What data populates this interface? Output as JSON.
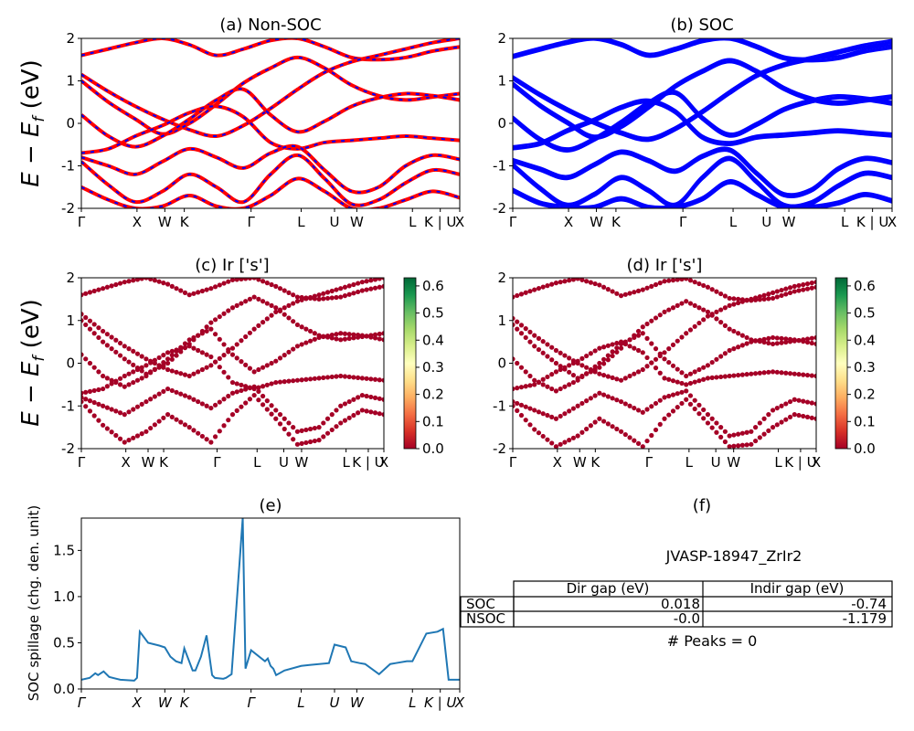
{
  "figure": {
    "ylabel_main": "E − E",
    "ylabel_sub": "f",
    "ylabel_unit": " (eV)",
    "spillage_ylabel": "SOC spillage (chg. den. unit)"
  },
  "kpath": {
    "labels": [
      "Γ",
      "X",
      "W",
      "K",
      "Γ",
      "L",
      "U",
      "W",
      "L",
      "K | U",
      "X"
    ],
    "positions": [
      0,
      1,
      1.5,
      1.85,
      3.05,
      3.95,
      4.55,
      4.95,
      5.95,
      6.45,
      6.8
    ]
  },
  "colors": {
    "nonsoc_red": "#ff0000",
    "nonsoc_blue": "#0000ff",
    "soc_blue": "#0000ff",
    "spillage_line": "#1f77b4",
    "cmap": [
      "#a50026",
      "#d73027",
      "#f46d43",
      "#fdae61",
      "#fee08b",
      "#ffffbf",
      "#d9ef8b",
      "#a6d96a",
      "#66bd63",
      "#1a9850",
      "#006837"
    ]
  },
  "chart_data": [
    {
      "id": "a",
      "type": "line",
      "title": "(a) Non-SOC",
      "ylim": [
        -2,
        2
      ],
      "yticks": [
        -2,
        -1,
        0,
        1,
        2
      ],
      "series": [
        {
          "values": [
            1.6,
            1.75,
            1.9,
            2.0,
            1.85,
            1.6,
            1.75,
            1.95,
            2.0,
            1.8,
            1.55,
            1.5,
            1.55,
            1.7,
            1.8
          ]
        },
        {
          "values": [
            1.15,
            0.75,
            0.4,
            0.1,
            -0.15,
            -0.3,
            -0.05,
            0.35,
            0.8,
            1.2,
            1.45,
            1.6,
            1.75,
            1.9,
            2.0
          ]
        },
        {
          "values": [
            1.0,
            0.5,
            0.1,
            -0.25,
            0.0,
            0.45,
            0.95,
            1.3,
            1.55,
            1.3,
            0.9,
            0.65,
            0.55,
            0.62,
            0.7
          ]
        },
        {
          "values": [
            0.2,
            -0.3,
            -0.55,
            -0.3,
            0.1,
            0.55,
            0.8,
            0.2,
            -0.2,
            0.05,
            0.4,
            0.6,
            0.7,
            0.65,
            0.55
          ]
        },
        {
          "values": [
            -0.7,
            -0.6,
            -0.3,
            -0.05,
            0.25,
            0.4,
            0.15,
            -0.45,
            -0.6,
            -0.45,
            -0.4,
            -0.35,
            -0.3,
            -0.35,
            -0.4
          ]
        },
        {
          "values": [
            -0.8,
            -1.0,
            -1.2,
            -0.9,
            -0.6,
            -0.8,
            -1.05,
            -0.7,
            -0.55,
            -1.1,
            -1.6,
            -1.5,
            -1.0,
            -0.75,
            -0.85
          ]
        },
        {
          "values": [
            -0.9,
            -1.45,
            -1.85,
            -1.6,
            -1.2,
            -1.5,
            -1.85,
            -1.2,
            -0.75,
            -1.3,
            -1.9,
            -1.8,
            -1.4,
            -1.1,
            -1.2
          ]
        },
        {
          "values": [
            -1.5,
            -1.8,
            -2.0,
            -1.95,
            -1.7,
            -1.95,
            -2.0,
            -1.7,
            -1.3,
            -1.6,
            -2.0,
            -2.0,
            -1.8,
            -1.6,
            -1.75
          ]
        }
      ]
    },
    {
      "id": "b",
      "type": "line",
      "title": "(b) SOC",
      "ylim": [
        -2,
        2
      ],
      "yticks": [
        -2,
        -1,
        0,
        1,
        2
      ],
      "series": [
        {
          "values": [
            1.55,
            1.72,
            1.88,
            1.98,
            1.83,
            1.58,
            1.72,
            1.92,
            1.98,
            1.78,
            1.52,
            1.47,
            1.52,
            1.68,
            1.78
          ]
        },
        {
          "values": [
            1.05,
            0.65,
            0.3,
            0.0,
            -0.25,
            -0.4,
            -0.15,
            0.25,
            0.7,
            1.1,
            1.35,
            1.5,
            1.65,
            1.8,
            1.9
          ]
        },
        {
          "values": [
            0.9,
            0.4,
            0.0,
            -0.35,
            -0.1,
            0.35,
            0.85,
            1.2,
            1.45,
            1.2,
            0.8,
            0.55,
            0.45,
            0.52,
            0.6
          ]
        },
        {
          "values": [
            0.1,
            -0.4,
            -0.65,
            -0.4,
            0.0,
            0.45,
            0.7,
            0.1,
            -0.3,
            -0.05,
            0.3,
            0.5,
            0.6,
            0.55,
            0.45
          ]
        },
        {
          "values": [
            -0.6,
            -0.5,
            -0.2,
            0.05,
            0.35,
            0.5,
            0.25,
            -0.35,
            -0.5,
            -0.35,
            -0.3,
            -0.25,
            -0.2,
            -0.25,
            -0.3
          ]
        },
        {
          "values": [
            -0.9,
            -1.1,
            -1.3,
            -1.0,
            -0.7,
            -0.9,
            -1.15,
            -0.8,
            -0.65,
            -1.2,
            -1.7,
            -1.6,
            -1.1,
            -0.85,
            -0.95
          ]
        },
        {
          "values": [
            -1.0,
            -1.55,
            -1.95,
            -1.7,
            -1.3,
            -1.6,
            -1.95,
            -1.3,
            -0.85,
            -1.4,
            -1.95,
            -1.9,
            -1.5,
            -1.2,
            -1.3
          ]
        },
        {
          "values": [
            -1.6,
            -1.9,
            -2.0,
            -2.0,
            -1.8,
            -2.0,
            -2.0,
            -1.8,
            -1.4,
            -1.7,
            -2.0,
            -2.0,
            -1.9,
            -1.7,
            -1.85
          ]
        }
      ]
    },
    {
      "id": "c",
      "type": "scatter",
      "title": "(c)  Ir ['s']",
      "ylim": [
        -2,
        2
      ],
      "yticks": [
        -2,
        -1,
        0,
        1,
        2
      ],
      "colorbar_ticks": [
        "0.0",
        "0.1",
        "0.2",
        "0.3",
        "0.4",
        "0.5",
        "0.6"
      ],
      "colorbar_range": [
        0,
        0.63
      ],
      "value_level": 0.02,
      "series": [
        {
          "values": [
            1.6,
            1.75,
            1.9,
            2.0,
            1.85,
            1.6,
            1.75,
            1.95,
            2.0,
            1.8,
            1.55,
            1.5,
            1.55,
            1.7,
            1.8
          ]
        },
        {
          "values": [
            1.15,
            0.75,
            0.4,
            0.1,
            -0.15,
            -0.3,
            -0.05,
            0.35,
            0.8,
            1.2,
            1.45,
            1.6,
            1.75,
            1.9,
            2.0
          ]
        },
        {
          "values": [
            1.0,
            0.5,
            0.1,
            -0.25,
            0.0,
            0.45,
            0.95,
            1.3,
            1.55,
            1.3,
            0.9,
            0.65,
            0.55,
            0.62,
            0.7
          ]
        },
        {
          "values": [
            0.2,
            -0.3,
            -0.55,
            -0.3,
            0.1,
            0.55,
            0.8,
            0.2,
            -0.2,
            0.05,
            0.4,
            0.6,
            0.7,
            0.65,
            0.55
          ]
        },
        {
          "values": [
            -0.7,
            -0.6,
            -0.3,
            -0.05,
            0.25,
            0.4,
            0.15,
            -0.45,
            -0.6,
            -0.45,
            -0.4,
            -0.35,
            -0.3,
            -0.35,
            -0.4
          ]
        },
        {
          "values": [
            -0.8,
            -1.0,
            -1.2,
            -0.9,
            -0.6,
            -0.8,
            -1.05,
            -0.7,
            -0.55,
            -1.1,
            -1.6,
            -1.5,
            -1.0,
            -0.75,
            -0.85
          ]
        },
        {
          "values": [
            -0.9,
            -1.45,
            -1.85,
            -1.6,
            -1.2,
            -1.5,
            -1.85,
            -1.2,
            -0.75,
            -1.3,
            -1.9,
            -1.8,
            -1.4,
            -1.1,
            -1.2
          ]
        }
      ]
    },
    {
      "id": "d",
      "type": "scatter",
      "title": "(d) Ir ['s']",
      "ylim": [
        -2,
        2
      ],
      "yticks": [
        -2,
        -1,
        0,
        1,
        2
      ],
      "colorbar_ticks": [
        "0.0",
        "0.1",
        "0.2",
        "0.3",
        "0.4",
        "0.5",
        "0.6"
      ],
      "colorbar_range": [
        0,
        0.63
      ],
      "value_level": 0.02,
      "series": [
        {
          "values": [
            1.55,
            1.72,
            1.88,
            1.98,
            1.83,
            1.58,
            1.72,
            1.92,
            1.98,
            1.78,
            1.52,
            1.47,
            1.52,
            1.68,
            1.78
          ]
        },
        {
          "values": [
            1.05,
            0.65,
            0.3,
            0.0,
            -0.25,
            -0.4,
            -0.15,
            0.25,
            0.7,
            1.1,
            1.35,
            1.5,
            1.65,
            1.8,
            1.9
          ]
        },
        {
          "values": [
            0.9,
            0.4,
            0.0,
            -0.35,
            -0.1,
            0.35,
            0.85,
            1.2,
            1.45,
            1.2,
            0.8,
            0.55,
            0.45,
            0.52,
            0.6
          ]
        },
        {
          "values": [
            0.1,
            -0.4,
            -0.65,
            -0.4,
            0.0,
            0.45,
            0.7,
            0.1,
            -0.3,
            -0.05,
            0.3,
            0.5,
            0.6,
            0.55,
            0.45
          ]
        },
        {
          "values": [
            -0.6,
            -0.5,
            -0.2,
            0.05,
            0.35,
            0.5,
            0.25,
            -0.35,
            -0.5,
            -0.35,
            -0.3,
            -0.25,
            -0.2,
            -0.25,
            -0.3
          ]
        },
        {
          "values": [
            -0.9,
            -1.1,
            -1.3,
            -1.0,
            -0.7,
            -0.9,
            -1.15,
            -0.8,
            -0.65,
            -1.2,
            -1.7,
            -1.6,
            -1.1,
            -0.85,
            -0.95
          ]
        },
        {
          "values": [
            -1.0,
            -1.55,
            -1.95,
            -1.7,
            -1.3,
            -1.6,
            -1.95,
            -1.3,
            -0.85,
            -1.4,
            -1.95,
            -1.9,
            -1.5,
            -1.2,
            -1.3
          ]
        }
      ]
    },
    {
      "id": "e",
      "type": "line",
      "title": "(e)",
      "ylabel": "SOC spillage (chg. den. unit)",
      "ylim": [
        0,
        1.85
      ],
      "yticks": [
        0.0,
        0.5,
        1.0,
        1.5
      ],
      "ytick_labels": [
        "0.0",
        "0.5",
        "1.0",
        "1.5"
      ],
      "x": [
        0,
        0.15,
        0.25,
        0.3,
        0.4,
        0.5,
        0.7,
        0.95,
        1.0,
        1.05,
        1.2,
        1.4,
        1.5,
        1.6,
        1.7,
        1.8,
        1.85,
        2.0,
        2.05,
        2.15,
        2.25,
        2.35,
        2.4,
        2.55,
        2.6,
        2.7,
        2.9,
        2.95,
        3.05,
        3.3,
        3.35,
        3.4,
        3.45,
        3.5,
        3.65,
        3.95,
        4.1,
        4.45,
        4.55,
        4.75,
        4.85,
        5.0,
        5.1,
        5.35,
        5.55,
        5.65,
        5.85,
        5.95,
        6.2,
        6.4,
        6.5,
        6.6,
        6.7,
        6.72,
        6.8
      ],
      "values": [
        0.1,
        0.12,
        0.17,
        0.15,
        0.19,
        0.13,
        0.1,
        0.09,
        0.12,
        0.62,
        0.5,
        0.47,
        0.45,
        0.35,
        0.3,
        0.28,
        0.44,
        0.2,
        0.2,
        0.35,
        0.58,
        0.15,
        0.12,
        0.11,
        0.12,
        0.16,
        1.85,
        0.22,
        0.42,
        0.3,
        0.33,
        0.25,
        0.22,
        0.15,
        0.2,
        0.25,
        0.26,
        0.28,
        0.48,
        0.45,
        0.3,
        0.28,
        0.27,
        0.16,
        0.27,
        0.28,
        0.3,
        0.3,
        0.6,
        0.62,
        0.65,
        0.1,
        0.1,
        0.1,
        0.1
      ]
    },
    {
      "id": "f",
      "type": "table",
      "title": "(f)",
      "table_title": "JVASP-18947_ZrIr2",
      "columns": [
        "Dir gap (eV)",
        "Indir gap (eV)"
      ],
      "rows": [
        {
          "label": "SOC",
          "cells": [
            "0.018",
            "-0.74"
          ]
        },
        {
          "label": "NSOC",
          "cells": [
            "-0.0",
            "-1.179"
          ]
        }
      ],
      "footer": "# Peaks = 0"
    }
  ]
}
